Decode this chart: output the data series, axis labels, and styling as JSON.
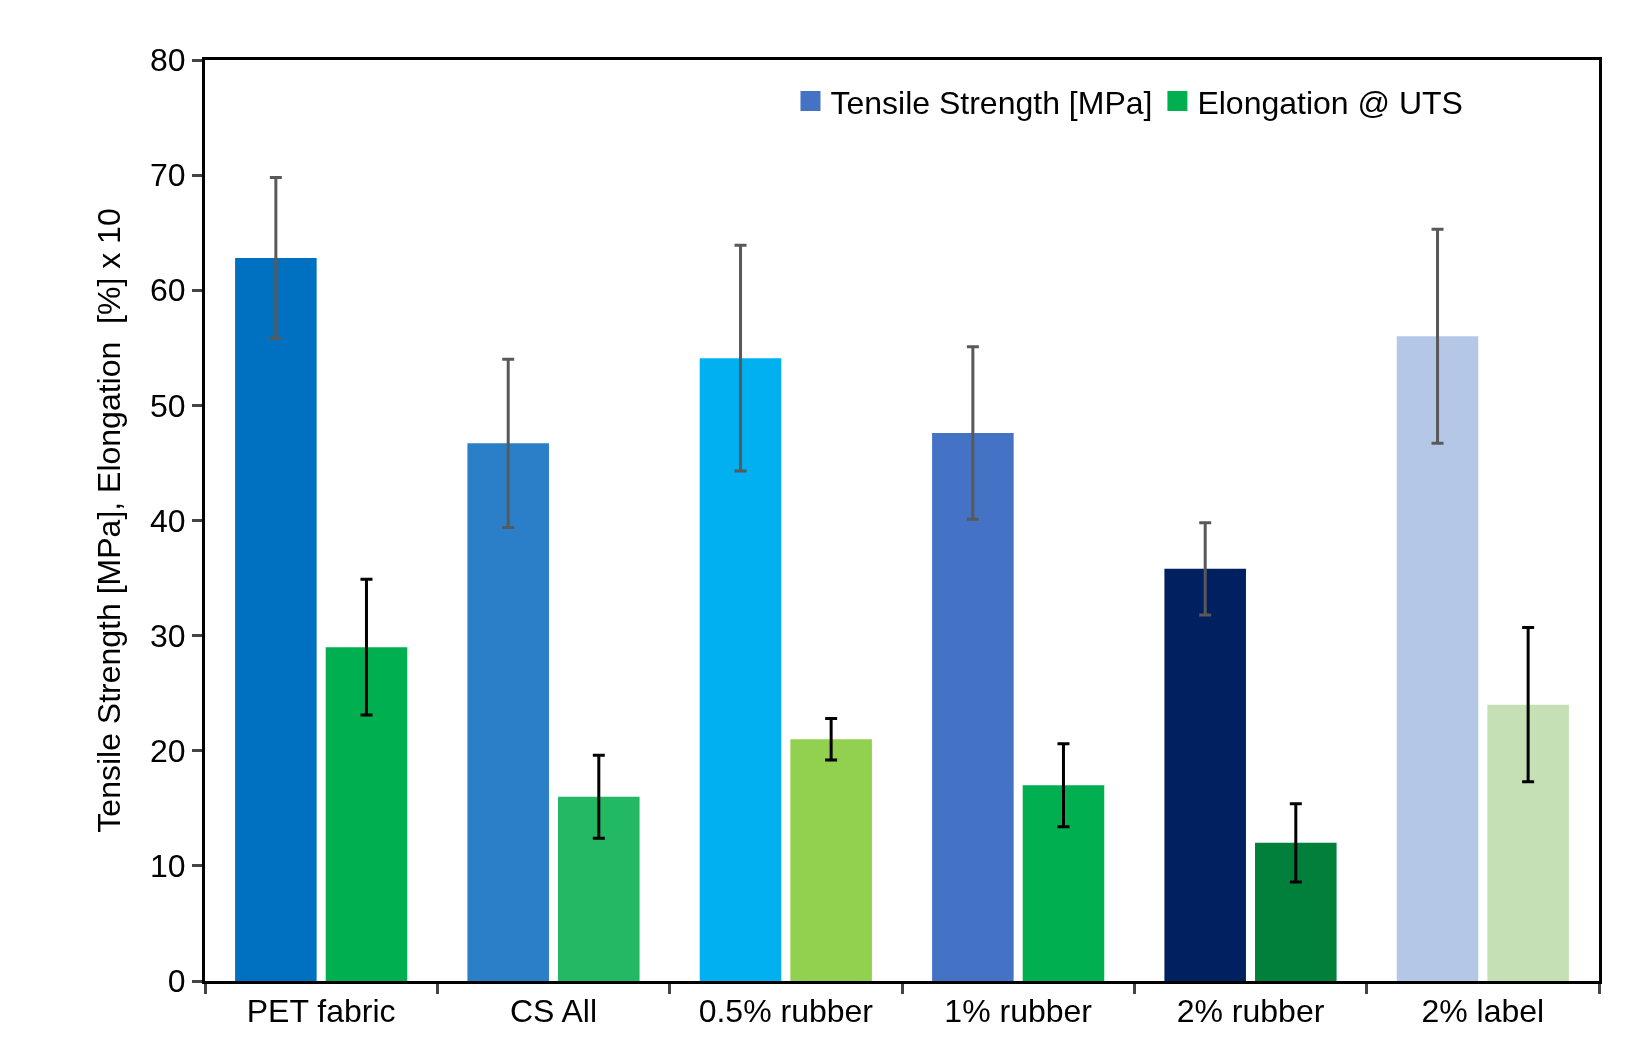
{
  "chart_data": {
    "type": "bar",
    "ylabel": "Tensile Strength [MPa], Elongation  [%] x 10",
    "categories": [
      "PET fabric",
      "CS All",
      "0.5% rubber",
      "1% rubber",
      "2% rubber",
      "2% label"
    ],
    "series": [
      {
        "name": "Tensile Strength [MPa]",
        "color": "#4472c4",
        "colors": [
          "#0070c0",
          "#2a7fc8",
          "#00b0f0",
          "#4472c4",
          "#002060",
          "#b4c7e7"
        ],
        "values": [
          62.8,
          46.7,
          54.1,
          47.6,
          35.8,
          56
        ],
        "errors": [
          7,
          7.3,
          9.8,
          7.5,
          4,
          9.3
        ]
      },
      {
        "name": "Elongation @ UTS",
        "color": "#00b050",
        "colors": [
          "#00b050",
          "#22b864",
          "#92d050",
          "#00b050",
          "#00803a",
          "#c5e0b4"
        ],
        "values": [
          29,
          16,
          21,
          17,
          12,
          24
        ],
        "errors": [
          5.9,
          3.6,
          1.8,
          3.6,
          3.4,
          6.7
        ]
      }
    ],
    "ylim": [
      0,
      80
    ],
    "yticks": [
      0,
      10,
      20,
      30,
      40,
      50,
      60,
      70,
      80
    ],
    "grid": false,
    "legend": "top"
  }
}
